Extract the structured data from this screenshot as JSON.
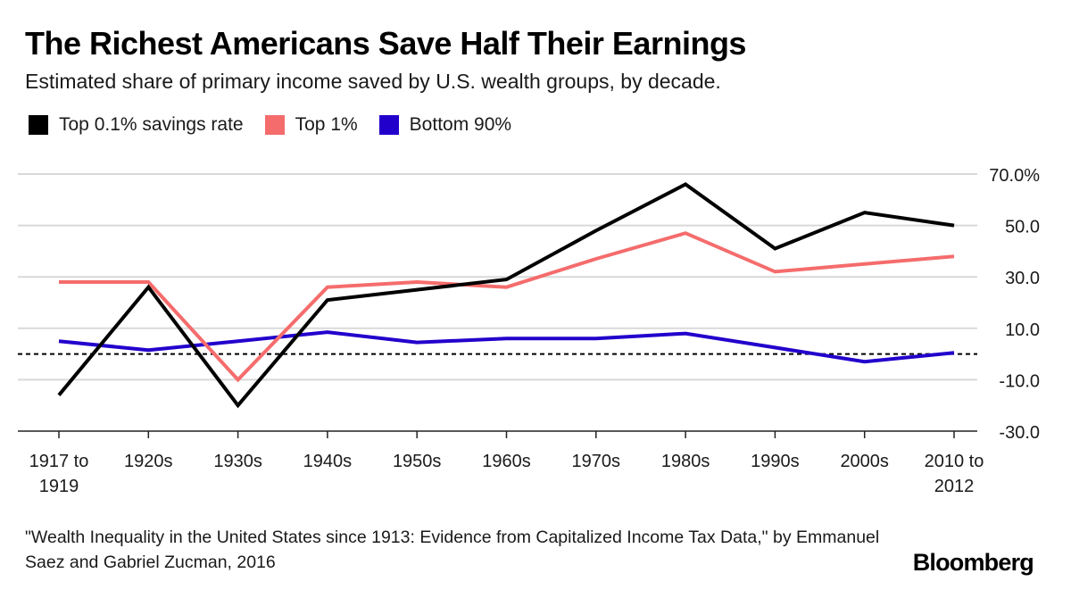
{
  "header": {
    "title": "The Richest Americans Save Half Their Earnings",
    "subtitle": "Estimated share of primary income saved by U.S. wealth groups, by decade."
  },
  "footer": {
    "source": "\"Wealth Inequality in the United States since 1913: Evidence from Capitalized Income Tax Data,\" by Emmanuel Saez and Gabriel Zucman, 2016",
    "brand": "Bloomberg"
  },
  "chart_data": {
    "type": "line",
    "title": "The Richest Americans Save Half Their Earnings",
    "subtitle": "Estimated share of primary income saved by U.S. wealth groups, by decade.",
    "xlabel": "",
    "ylabel": "",
    "categories": [
      [
        "1917 to",
        "1919"
      ],
      [
        "1920s"
      ],
      [
        "1930s"
      ],
      [
        "1940s"
      ],
      [
        "1950s"
      ],
      [
        "1960s"
      ],
      [
        "1970s"
      ],
      [
        "1980s"
      ],
      [
        "1990s"
      ],
      [
        "2000s"
      ],
      [
        "2010 to",
        "2012"
      ]
    ],
    "ylim": [
      -30,
      70
    ],
    "yticks": [
      70,
      50,
      30,
      10,
      -10,
      -30
    ],
    "ytick_labels": [
      "70.0%",
      "50.0",
      "30.0",
      "10.0",
      "-10.0",
      "-30.0"
    ],
    "reference_line": 0,
    "legend_position": "top-left",
    "series": [
      {
        "name": "Top 0.1% savings rate",
        "color": "#000000",
        "values": [
          -16,
          26,
          -20,
          21,
          25,
          29,
          48,
          66,
          41,
          55,
          50
        ]
      },
      {
        "name": "Top 1%",
        "color": "#f56c6c",
        "values": [
          28,
          28,
          -10,
          26,
          28,
          26,
          37,
          47,
          32,
          35,
          38
        ]
      },
      {
        "name": "Bottom 90%",
        "color": "#2200cc",
        "values": [
          5,
          1.5,
          5,
          8.5,
          4.5,
          6,
          6,
          8,
          2.5,
          -3,
          0.5
        ]
      }
    ]
  }
}
